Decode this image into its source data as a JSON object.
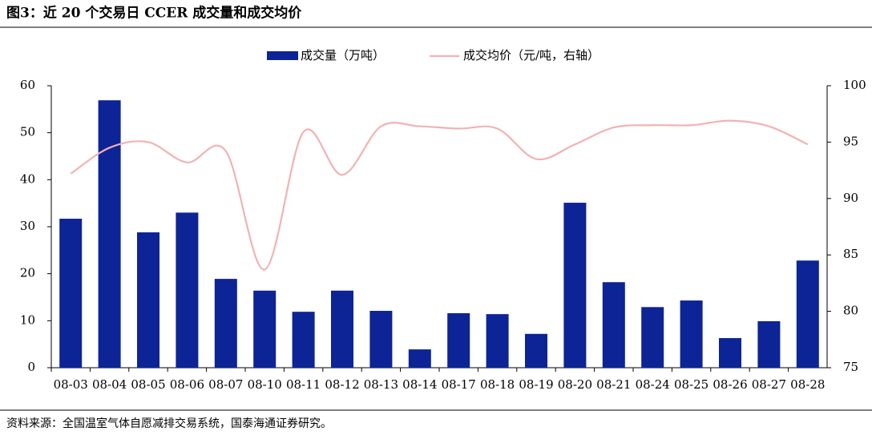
{
  "chart_data": {
    "type": "bar-line",
    "title": "图3：近 20 个交易日 CCER 成交量和成交均价",
    "source": "资料来源：全国温室气体自愿减排交易系统，国泰海通证券研究。",
    "categories": [
      "08-03",
      "08-04",
      "08-05",
      "08-06",
      "08-07",
      "08-10",
      "08-11",
      "08-12",
      "08-13",
      "08-14",
      "08-17",
      "08-18",
      "08-19",
      "08-20",
      "08-21",
      "08-24",
      "08-25",
      "08-26",
      "08-27",
      "08-28"
    ],
    "series": [
      {
        "name": "成交量（万吨）",
        "type": "bar",
        "color": "#0c2495",
        "values": [
          31.7,
          56.9,
          28.8,
          33.0,
          18.9,
          16.4,
          11.9,
          16.4,
          12.1,
          3.9,
          11.6,
          11.4,
          7.2,
          35.1,
          18.2,
          12.9,
          14.3,
          6.3,
          9.9,
          22.8
        ]
      },
      {
        "name": "成交均价（元/吨，右轴）",
        "type": "line",
        "axis": "y2",
        "color": "#f2b2b3",
        "values": [
          92.2,
          94.5,
          95.0,
          93.2,
          94.2,
          83.7,
          95.9,
          92.1,
          96.4,
          96.4,
          96.2,
          96.2,
          93.5,
          94.8,
          96.3,
          96.5,
          96.5,
          96.9,
          96.4,
          94.8
        ]
      }
    ],
    "ylim": [
      0,
      60
    ],
    "yticks": [
      0,
      10,
      20,
      30,
      40,
      50,
      60
    ],
    "y2lim": [
      75,
      100
    ],
    "y2ticks": [
      75,
      80,
      85,
      90,
      95,
      100
    ],
    "legend": "top"
  }
}
